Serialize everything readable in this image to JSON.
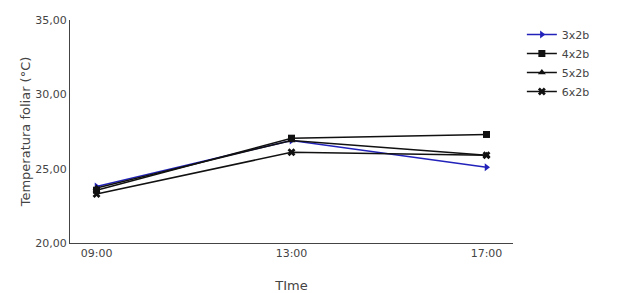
{
  "chart_data": {
    "type": "line",
    "xlabel": "TIme",
    "ylabel": "Temperatura foliar (°C)",
    "categories": [
      "09:00",
      "13:00",
      "17:00"
    ],
    "series": [
      {
        "name": "3x2b",
        "color": "#2222bb",
        "marker": "triangle-right",
        "values": [
          23.8,
          26.9,
          25.1
        ]
      },
      {
        "name": "4x2b",
        "color": "#111111",
        "marker": "square",
        "values": [
          23.55,
          27.05,
          27.3
        ]
      },
      {
        "name": "5x2b",
        "color": "#111111",
        "marker": "triangle-up",
        "values": [
          23.7,
          26.9,
          25.9
        ]
      },
      {
        "name": "6x2b",
        "color": "#111111",
        "marker": "x",
        "values": [
          23.3,
          26.1,
          25.9
        ]
      }
    ],
    "ylim": [
      20.0,
      35.0
    ],
    "yticks": [
      {
        "value": 20.0,
        "label": "20,00"
      },
      {
        "value": 25.0,
        "label": "25,00"
      },
      {
        "value": 30.0,
        "label": "30,00"
      },
      {
        "value": 35.0,
        "label": "35,00"
      }
    ],
    "grid": false,
    "legend": "upper right"
  }
}
